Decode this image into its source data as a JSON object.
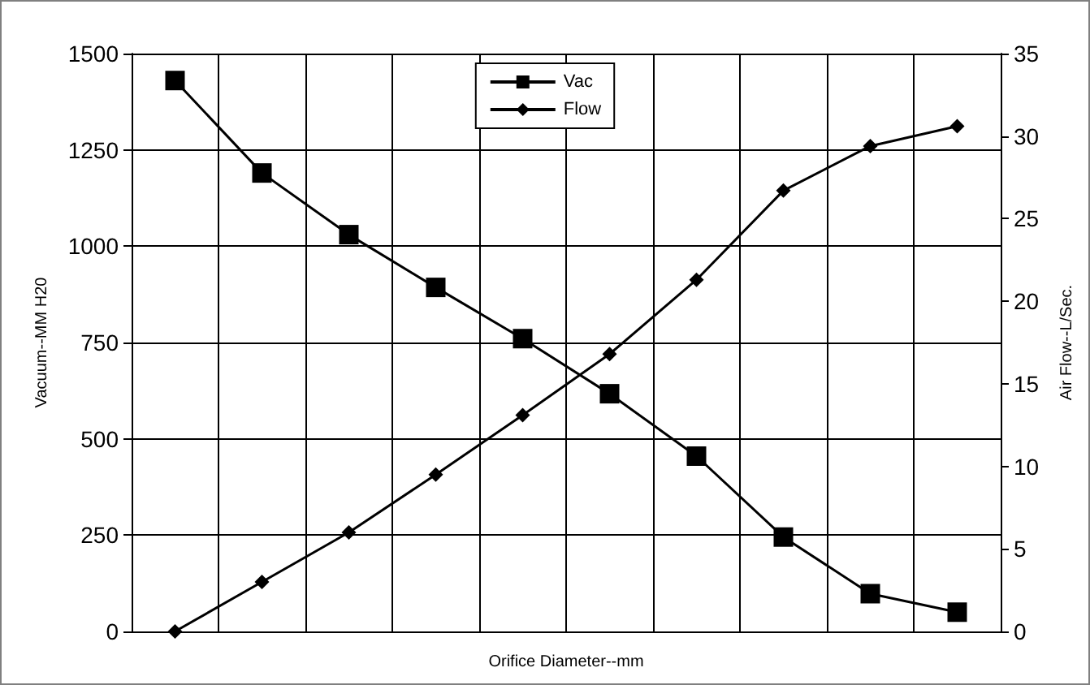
{
  "chart_data": {
    "type": "line",
    "xlabel": "Orifice Diameter--mm",
    "ylabel": "Vacuum--MM H20",
    "y2label": "Air Flow--L/Sec.",
    "categories": [
      null,
      null,
      null,
      null,
      null,
      null,
      null,
      null,
      null,
      null
    ],
    "series": [
      {
        "name": "Vac",
        "color": "#000000",
        "marker": "square",
        "values": [
          1430,
          1190,
          1030,
          893,
          760,
          617,
          455,
          245,
          98,
          50
        ]
      },
      {
        "name": "Flow",
        "color": "#000000",
        "marker": "diamond",
        "axis": "y2",
        "values": [
          0,
          3.0,
          6.0,
          9.5,
          13.1,
          16.8,
          21.3,
          26.7,
          29.4,
          30.6
        ]
      }
    ],
    "ylim": [
      0,
      1500
    ],
    "yticks": [
      0,
      250,
      500,
      750,
      1000,
      1250,
      1500
    ],
    "y2lim": [
      0,
      35
    ],
    "y2ticks": [
      0,
      5,
      10,
      15,
      20,
      25,
      30,
      35
    ],
    "grid": true,
    "legend": "top",
    "line_style": "solid"
  }
}
